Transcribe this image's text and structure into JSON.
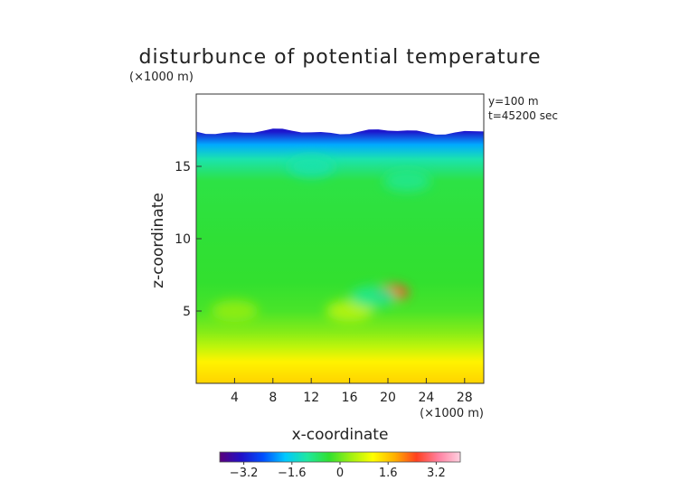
{
  "chart_data": {
    "type": "heatmap",
    "title": "disturbunce of potential temperature",
    "xlabel": "x-coordinate",
    "ylabel": "z-coordinate",
    "x_unit": "(×1000 m)",
    "y_unit": "(×1000 m)",
    "annotations": [
      "y=100 m",
      "t=45200 sec"
    ],
    "xlim": [
      0,
      30
    ],
    "ylim": [
      0,
      20
    ],
    "x_ticks": [
      4,
      8,
      12,
      16,
      20,
      24,
      28
    ],
    "y_ticks": [
      5,
      10,
      15
    ],
    "colorbar": {
      "min": -4.0,
      "max": 4.0,
      "ticks": [
        "−3.2",
        "−1.6",
        "0",
        "1.6",
        "3.2"
      ],
      "tick_values": [
        -3.2,
        -1.6,
        0,
        1.6,
        3.2
      ],
      "colors": [
        "#5a007a",
        "#2010c8",
        "#0050ff",
        "#00c8ff",
        "#20e8a0",
        "#30e030",
        "#a0f010",
        "#ffff00",
        "#ffb000",
        "#ff4020",
        "#ff80a0",
        "#ffd0e0"
      ]
    },
    "field": {
      "top_boundary_km": 17.4,
      "vertical_profile": [
        {
          "z": 0.0,
          "value": 1.5
        },
        {
          "z": 1.5,
          "value": 1.2
        },
        {
          "z": 2.5,
          "value": 0.6
        },
        {
          "z": 3.5,
          "value": 0.2
        },
        {
          "z": 5.0,
          "value": -0.2
        },
        {
          "z": 7.0,
          "value": -0.35
        },
        {
          "z": 10.0,
          "value": -0.4
        },
        {
          "z": 14.0,
          "value": -0.5
        },
        {
          "z": 15.5,
          "value": -1.2
        },
        {
          "z": 16.5,
          "value": -2.0
        },
        {
          "z": 17.4,
          "value": -3.2
        }
      ],
      "features": [
        {
          "x": 20.5,
          "z": 6.3,
          "value": 2.6
        },
        {
          "x": 16.0,
          "z": 5.0,
          "value": 0.6
        },
        {
          "x": 4.0,
          "z": 5.0,
          "value": 0.3
        },
        {
          "x": 18.5,
          "z": 6.0,
          "value": -1.0
        },
        {
          "x": 12.0,
          "z": 15.0,
          "value": -1.2
        },
        {
          "x": 22.0,
          "z": 14.0,
          "value": -1.0
        }
      ]
    }
  }
}
